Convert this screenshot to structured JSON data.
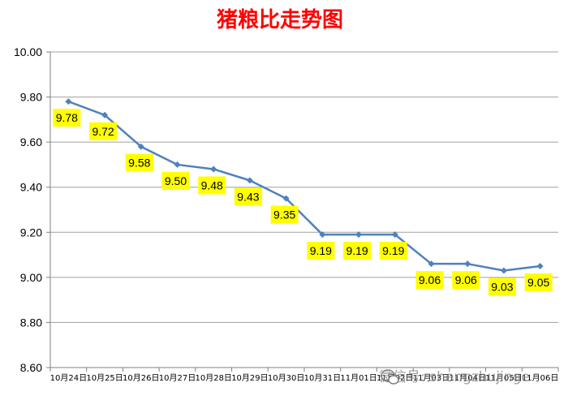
{
  "chart_data": {
    "type": "line",
    "title": "猪粮比走势图",
    "xlabel": "",
    "ylabel": "",
    "ylim": [
      8.6,
      10.0
    ],
    "yticks": [
      "10.00",
      "9.80",
      "9.60",
      "9.40",
      "9.20",
      "9.00",
      "8.80",
      "8.60"
    ],
    "categories": [
      "10月24日",
      "10月25日",
      "10月26日",
      "10月27日",
      "10月28日",
      "10月29日",
      "10月30日",
      "10月31日",
      "11月01日",
      "11月02日",
      "11月03日",
      "11月04日",
      "11月05日",
      "11月06日"
    ],
    "series": [
      {
        "name": "",
        "values": [
          9.78,
          9.72,
          9.58,
          9.5,
          9.48,
          9.43,
          9.35,
          9.19,
          9.19,
          9.19,
          9.06,
          9.06,
          9.03,
          9.05
        ],
        "labels": [
          "9.78",
          "9.72",
          "9.58",
          "9.50",
          "9.48",
          "9.43",
          "9.35",
          "9.19",
          "9.19",
          "9.19",
          "9.06",
          "9.06",
          "9.03",
          "9.05"
        ]
      }
    ],
    "grid": true,
    "legend": "none",
    "colors": {
      "line": "#4f81bd",
      "title": "#ff0000",
      "label_bg": "#ffff00",
      "grid": "#a0a0a0"
    }
  },
  "watermark": "微信号: shengzhujinge"
}
